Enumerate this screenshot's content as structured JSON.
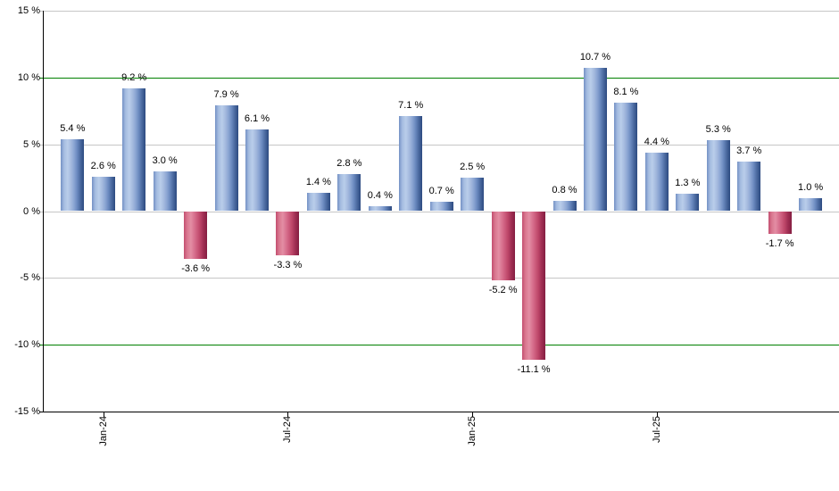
{
  "chart_data": {
    "type": "bar",
    "title": "",
    "xlabel": "",
    "ylabel": "",
    "ylim": [
      -15,
      15
    ],
    "grid": true,
    "legend_position": "none",
    "y_ticks": [
      {
        "value": 15,
        "label": "15 %",
        "line": "gray"
      },
      {
        "value": 10,
        "label": "10 %",
        "line": "green"
      },
      {
        "value": 5,
        "label": "5 %",
        "line": "gray"
      },
      {
        "value": 0,
        "label": "0 %",
        "line": "gray"
      },
      {
        "value": -5,
        "label": "-5 %",
        "line": "gray"
      },
      {
        "value": -10,
        "label": "-10 %",
        "line": "green"
      },
      {
        "value": -15,
        "label": "-15 %",
        "line": "axis"
      }
    ],
    "x_ticks": [
      {
        "label": "Jan-24",
        "bar_index": 1
      },
      {
        "label": "Jul-24",
        "bar_index": 7
      },
      {
        "label": "Jan-25",
        "bar_index": 13
      },
      {
        "label": "Jul-25",
        "bar_index": 19
      }
    ],
    "bars": [
      {
        "value": 5.4,
        "label": "5.4 %"
      },
      {
        "value": 2.6,
        "label": "2.6 %"
      },
      {
        "value": 9.2,
        "label": "9.2 %"
      },
      {
        "value": 3.0,
        "label": "3.0 %"
      },
      {
        "value": -3.6,
        "label": "-3.6 %"
      },
      {
        "value": 7.9,
        "label": "7.9 %"
      },
      {
        "value": 6.1,
        "label": "6.1 %"
      },
      {
        "value": -3.3,
        "label": "-3.3 %"
      },
      {
        "value": 1.4,
        "label": "1.4 %"
      },
      {
        "value": 2.8,
        "label": "2.8 %"
      },
      {
        "value": 0.4,
        "label": "0.4 %"
      },
      {
        "value": 7.1,
        "label": "7.1 %"
      },
      {
        "value": 0.7,
        "label": "0.7 %"
      },
      {
        "value": 2.5,
        "label": "2.5 %"
      },
      {
        "value": -5.2,
        "label": "-5.2 %"
      },
      {
        "value": -11.1,
        "label": "-11.1 %"
      },
      {
        "value": 0.8,
        "label": "0.8 %"
      },
      {
        "value": 10.7,
        "label": "10.7 %"
      },
      {
        "value": 8.1,
        "label": "8.1 %"
      },
      {
        "value": 4.4,
        "label": "4.4 %"
      },
      {
        "value": 1.3,
        "label": "1.3 %"
      },
      {
        "value": 5.3,
        "label": "5.3 %"
      },
      {
        "value": 3.7,
        "label": "3.7 %"
      },
      {
        "value": -1.7,
        "label": "-1.7 %"
      },
      {
        "value": 1.0,
        "label": "1.0 %"
      }
    ],
    "colors": {
      "positive_bar_main": "#8aa4d2",
      "positive_bar_light": "#b9cdea",
      "positive_bar_dark": "#2c4a80",
      "negative_bar_main": "#cb5a7b",
      "negative_bar_light": "#e38da4",
      "negative_bar_dark": "#851e42",
      "gridline_gray": "#c6c6c6",
      "threshold_line_green": "#008000",
      "axis_black": "#000000",
      "label_text": "#000000",
      "background": "#ffffff"
    }
  }
}
